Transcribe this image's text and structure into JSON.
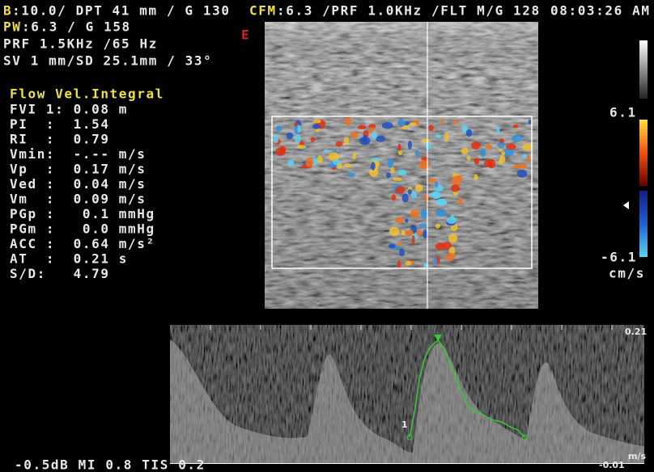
{
  "header": {
    "b_mode_prefix": "B",
    "b_mode": ":10.0/ DPT 41 mm / G 130",
    "cfm_prefix": "CFM",
    "cfm": ":6.3 /PRF 1.0KHz /FLT M/G 128",
    "time": "08:03:26 AM"
  },
  "pw": {
    "prefix": "PW",
    "gain": ":6.3 / G 158",
    "prf": "PRF 1.5KHz /65 Hz",
    "sample_volume": "SV 1 mm/SD 25.1mm / 33°"
  },
  "measurements": {
    "title": "Flow Vel.Integral",
    "rows": [
      "FVI 1: 0.08 m",
      "PI  :  1.54",
      "RI  :  0.79",
      "Vmin:  -.-- m/s",
      "Vp  :  0.17 m/s",
      "Ved :  0.04 m/s",
      "Vm  :  0.09 m/s",
      "PGp :   0.1 mmHg",
      "PGm :   0.0 mmHg",
      "ACC :  0.64 m/s²",
      "AT  :  0.21 s",
      "S/D:   4.79"
    ]
  },
  "marker": "E",
  "color_scale": {
    "max": "6.1",
    "min": "-6.1",
    "unit": "cm/s"
  },
  "spectrum": {
    "top": "0.21",
    "bottom": "-0.01",
    "unit": "m/s",
    "cycle_label": "1"
  },
  "footer": "-0.5dB MI 0.8 TIS 0.2"
}
